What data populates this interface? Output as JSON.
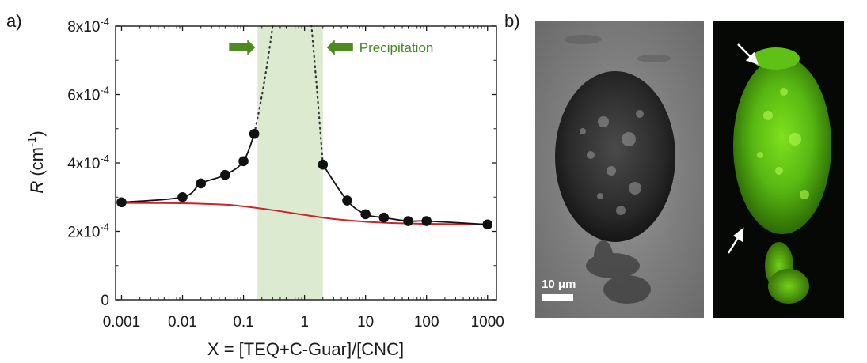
{
  "panels": {
    "a_label": "a)",
    "b_label": "b)"
  },
  "chart_data": {
    "type": "scatter",
    "xscale": "log",
    "xlim": [
      0.0008,
      1400
    ],
    "ylim": [
      0,
      0.0008
    ],
    "xlabel": "X = [TEQ+C-Guar]/[CNC]",
    "ylabel_main": "R",
    "ylabel_unit": " (cm",
    "ylabel_exp": "-1",
    "ylabel_close": ")",
    "yticks": [
      {
        "value": 0,
        "label": "0"
      },
      {
        "value": 0.0002,
        "label": "2x10",
        "exp": "-4"
      },
      {
        "value": 0.0004,
        "label": "4x10",
        "exp": "-4"
      },
      {
        "value": 0.0006,
        "label": "6x10",
        "exp": "-4"
      },
      {
        "value": 0.0008,
        "label": "8x10",
        "exp": "-4"
      }
    ],
    "xticks": [
      {
        "value": 0.001,
        "label": "0.001"
      },
      {
        "value": 0.01,
        "label": "0.01"
      },
      {
        "value": 0.1,
        "label": "0.1"
      },
      {
        "value": 1,
        "label": "1"
      },
      {
        "value": 10,
        "label": "10"
      },
      {
        "value": 100,
        "label": "100"
      },
      {
        "value": 1000,
        "label": "1000"
      }
    ],
    "points_left": [
      [
        0.001,
        0.000285
      ],
      [
        0.01,
        0.0003
      ],
      [
        0.02,
        0.00034
      ],
      [
        0.05,
        0.000365
      ],
      [
        0.1,
        0.000405
      ],
      [
        0.15,
        0.000485
      ]
    ],
    "points_right": [
      [
        2,
        0.000395
      ],
      [
        5,
        0.00029
      ],
      [
        10,
        0.00025
      ],
      [
        20,
        0.00024
      ],
      [
        50,
        0.00023
      ],
      [
        100,
        0.00023
      ],
      [
        1000,
        0.00022
      ]
    ],
    "red_curve": [
      [
        0.001,
        0.000283
      ],
      [
        0.01,
        0.000282
      ],
      [
        0.05,
        0.000278
      ],
      [
        0.1,
        0.000273
      ],
      [
        0.3,
        0.000262
      ],
      [
        1,
        0.000248
      ],
      [
        3,
        0.000236
      ],
      [
        10,
        0.000228
      ],
      [
        30,
        0.000224
      ],
      [
        100,
        0.000222
      ],
      [
        1000,
        0.00022
      ]
    ],
    "precipitation_band": [
      0.17,
      2
    ],
    "annotation": "Precipitation",
    "colors": {
      "points": "#111111",
      "red_curve": "#c8252c",
      "band": "#dcebd0",
      "arrow": "#4e8a1e",
      "annotation": "#3f8a20"
    }
  },
  "micrographs": {
    "scale_label": "10 μm"
  }
}
